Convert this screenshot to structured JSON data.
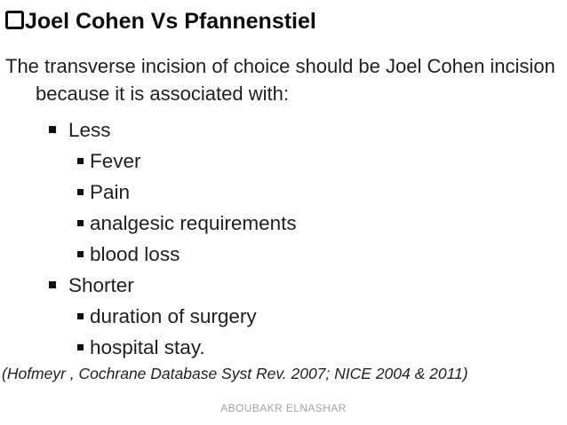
{
  "slide": {
    "title": "Joel Cohen Vs Pfannenstiel",
    "lead": "The transverse incision of choice should be Joel Cohen incision because it is associated with:",
    "bullets": [
      {
        "level": 1,
        "text": "Less"
      },
      {
        "level": 2,
        "text": "Fever"
      },
      {
        "level": 2,
        "text": "Pain"
      },
      {
        "level": 2,
        "text": "analgesic requirements"
      },
      {
        "level": 2,
        "text": "blood loss"
      },
      {
        "level": 1,
        "text": "Shorter"
      },
      {
        "level": 2,
        "text": "duration of surgery"
      },
      {
        "level": 2,
        "text": "hospital stay."
      }
    ],
    "citation": "(Hofmeyr , Cochrane Database Syst Rev. 2007; NICE 2004 & 2011)",
    "footer": "ABOUBAKR ELNASHAR",
    "colors": {
      "background": "#ffffff",
      "text": "#1f1f1f",
      "title": "#0d0d0d",
      "footer": "#a3a3a3"
    }
  }
}
